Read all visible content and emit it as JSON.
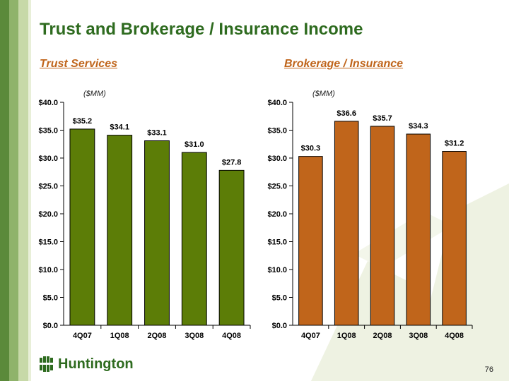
{
  "slide": {
    "title": "Trust and Brokerage / Insurance Income",
    "page_number": "76"
  },
  "logo": {
    "text": "Huntington",
    "icon": "huntington-logo-icon"
  },
  "colors": {
    "title": "#2e6b1f",
    "subtitle": "#c0651b",
    "trust_bar": "#5c7d07",
    "brokerage_bar": "#c0651b"
  },
  "chart_data": [
    {
      "type": "bar",
      "title": "Trust Services",
      "unit_label": "($MM)",
      "categories": [
        "4Q07",
        "1Q08",
        "2Q08",
        "3Q08",
        "4Q08"
      ],
      "values": [
        35.2,
        34.1,
        33.1,
        31.0,
        27.8
      ],
      "data_labels": [
        "$35.2",
        "$34.1",
        "$33.1",
        "$31.0",
        "$27.8"
      ],
      "y_ticks": [
        "$0.0",
        "$5.0",
        "$10.0",
        "$15.0",
        "$20.0",
        "$25.0",
        "$30.0",
        "$35.0",
        "$40.0"
      ],
      "ylim": [
        0,
        40
      ],
      "grid": false
    },
    {
      "type": "bar",
      "title": "Brokerage / Insurance",
      "unit_label": "($MM)",
      "categories": [
        "4Q07",
        "1Q08",
        "2Q08",
        "3Q08",
        "4Q08"
      ],
      "values": [
        30.3,
        36.6,
        35.7,
        34.3,
        31.2
      ],
      "data_labels": [
        "$30.3",
        "$36.6",
        "$35.7",
        "$34.3",
        "$31.2"
      ],
      "y_ticks": [
        "$0.0",
        "$5.0",
        "$10.0",
        "$15.0",
        "$20.0",
        "$25.0",
        "$30.0",
        "$35.0",
        "$40.0"
      ],
      "ylim": [
        0,
        40
      ],
      "grid": false
    }
  ]
}
